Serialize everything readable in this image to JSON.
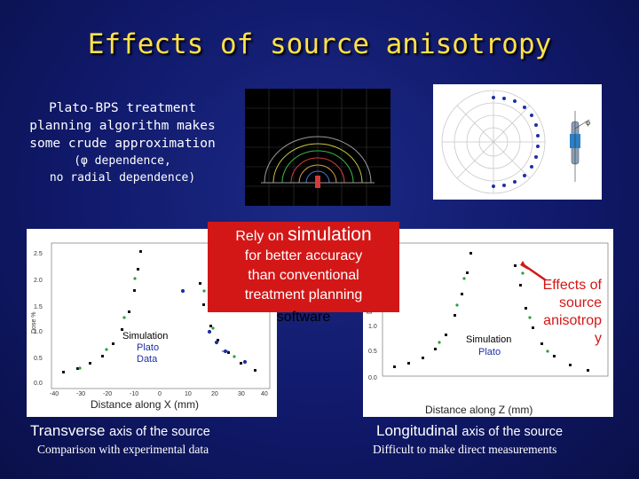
{
  "title": "Effects of source anisotropy",
  "intro": {
    "line1": "Plato-BPS treatment",
    "line2": "planning algorithm makes",
    "line3": "some crude approximation",
    "line4": "(φ dependence,",
    "line5": "no radial dependence)"
  },
  "callout": {
    "rely": "Rely on ",
    "simulation": "simulation",
    "line2": "for better accuracy",
    "line3": "than conventional",
    "line4": "treatment planning",
    "line5": "software"
  },
  "effects_note": {
    "line1": "Effects of",
    "line2": "source",
    "line3": "anisotrop",
    "line4": "y"
  },
  "left_plot": {
    "ylabel": "Dose %",
    "xlabel": "Distance along X (mm)",
    "yticks": [
      "2.5",
      "2.0",
      "1.5",
      "1.0",
      "0.5",
      "0.0"
    ],
    "xticks": [
      "-40",
      "-30",
      "-20",
      "-10",
      "0",
      "10",
      "20",
      "30",
      "40"
    ],
    "legend": [
      "Simulation",
      "Plato",
      "Data"
    ]
  },
  "right_plot": {
    "ylabel": "Do",
    "xlabel": "Distance along Z (mm)",
    "yticks": [
      "1.0",
      "0.5",
      "0.0"
    ],
    "legend": [
      "Simulation",
      "Plato"
    ]
  },
  "polar": {
    "phi_label": "φ"
  },
  "captions": {
    "transverse_big": "Transverse ",
    "transverse_small": "axis of the source",
    "transverse_sub": "Comparison with experimental data",
    "longitudinal_big": "Longitudinal ",
    "longitudinal_small": "axis of the source",
    "longitudinal_sub": "Difficult to make direct measurements"
  },
  "colors": {
    "title": "#ffe14a",
    "callout": "#d31717",
    "background": "#10196a"
  }
}
